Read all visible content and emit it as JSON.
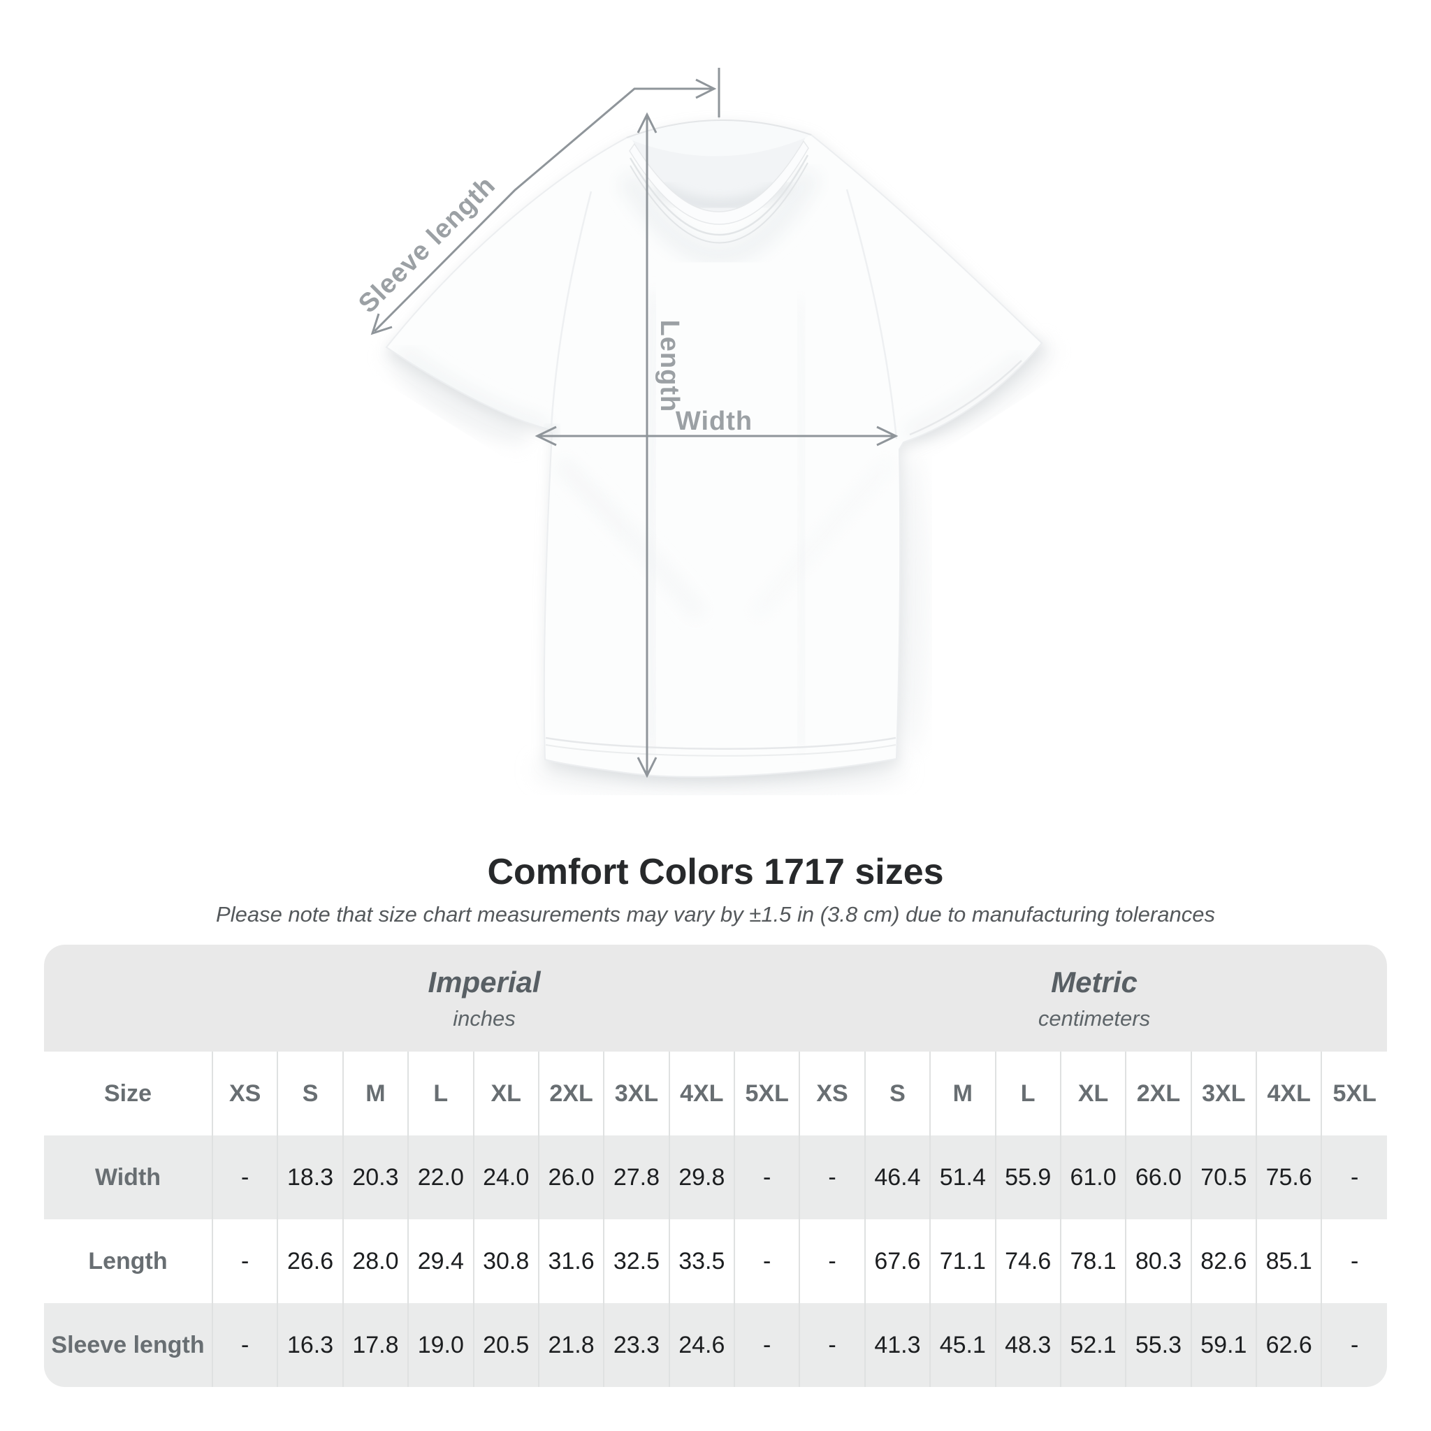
{
  "page": {
    "title": "Comfort Colors 1717 sizes",
    "subtitle": "Please note that size chart measurements may vary by ±1.5 in (3.8 cm) due to manufacturing tolerances"
  },
  "diagram": {
    "labels": {
      "sleeve": "Sleeve length",
      "length": "Length",
      "width": "Width"
    },
    "colors": {
      "measure_line": "#8f959a",
      "measure_label": "#9ba0a4",
      "shirt_fill": "#fcfdfd",
      "shirt_shadow": "#e2e5e7"
    }
  },
  "table": {
    "size_header": "Size",
    "unit_groups": [
      {
        "name": "Imperial",
        "unit": "inches"
      },
      {
        "name": "Metric",
        "unit": "centimeters"
      }
    ],
    "sizes": [
      "XS",
      "S",
      "M",
      "L",
      "XL",
      "2XL",
      "3XL",
      "4XL",
      "5XL"
    ],
    "rows": [
      {
        "label": "Width",
        "imperial": [
          "-",
          "18.3",
          "20.3",
          "22.0",
          "24.0",
          "26.0",
          "27.8",
          "29.8",
          "-"
        ],
        "metric": [
          "-",
          "46.4",
          "51.4",
          "55.9",
          "61.0",
          "66.0",
          "70.5",
          "75.6",
          "-"
        ]
      },
      {
        "label": "Length",
        "imperial": [
          "-",
          "26.6",
          "28.0",
          "29.4",
          "30.8",
          "31.6",
          "32.5",
          "33.5",
          "-"
        ],
        "metric": [
          "-",
          "67.6",
          "71.1",
          "74.6",
          "78.1",
          "80.3",
          "82.6",
          "85.1",
          "-"
        ]
      },
      {
        "label": "Sleeve length",
        "imperial": [
          "-",
          "16.3",
          "17.8",
          "19.0",
          "20.5",
          "21.8",
          "23.3",
          "24.6",
          "-"
        ],
        "metric": [
          "-",
          "41.3",
          "45.1",
          "48.3",
          "52.1",
          "55.3",
          "59.1",
          "62.6",
          "-"
        ]
      }
    ],
    "colors": {
      "band_bg": "#e9e9e9",
      "alt_row_bg": "#eaebeb",
      "header_text": "#686e72",
      "value_text": "#1c1e20",
      "separator": "#dfe1e1",
      "title_text": "#27292b",
      "subtitle_text": "#54585b"
    }
  }
}
